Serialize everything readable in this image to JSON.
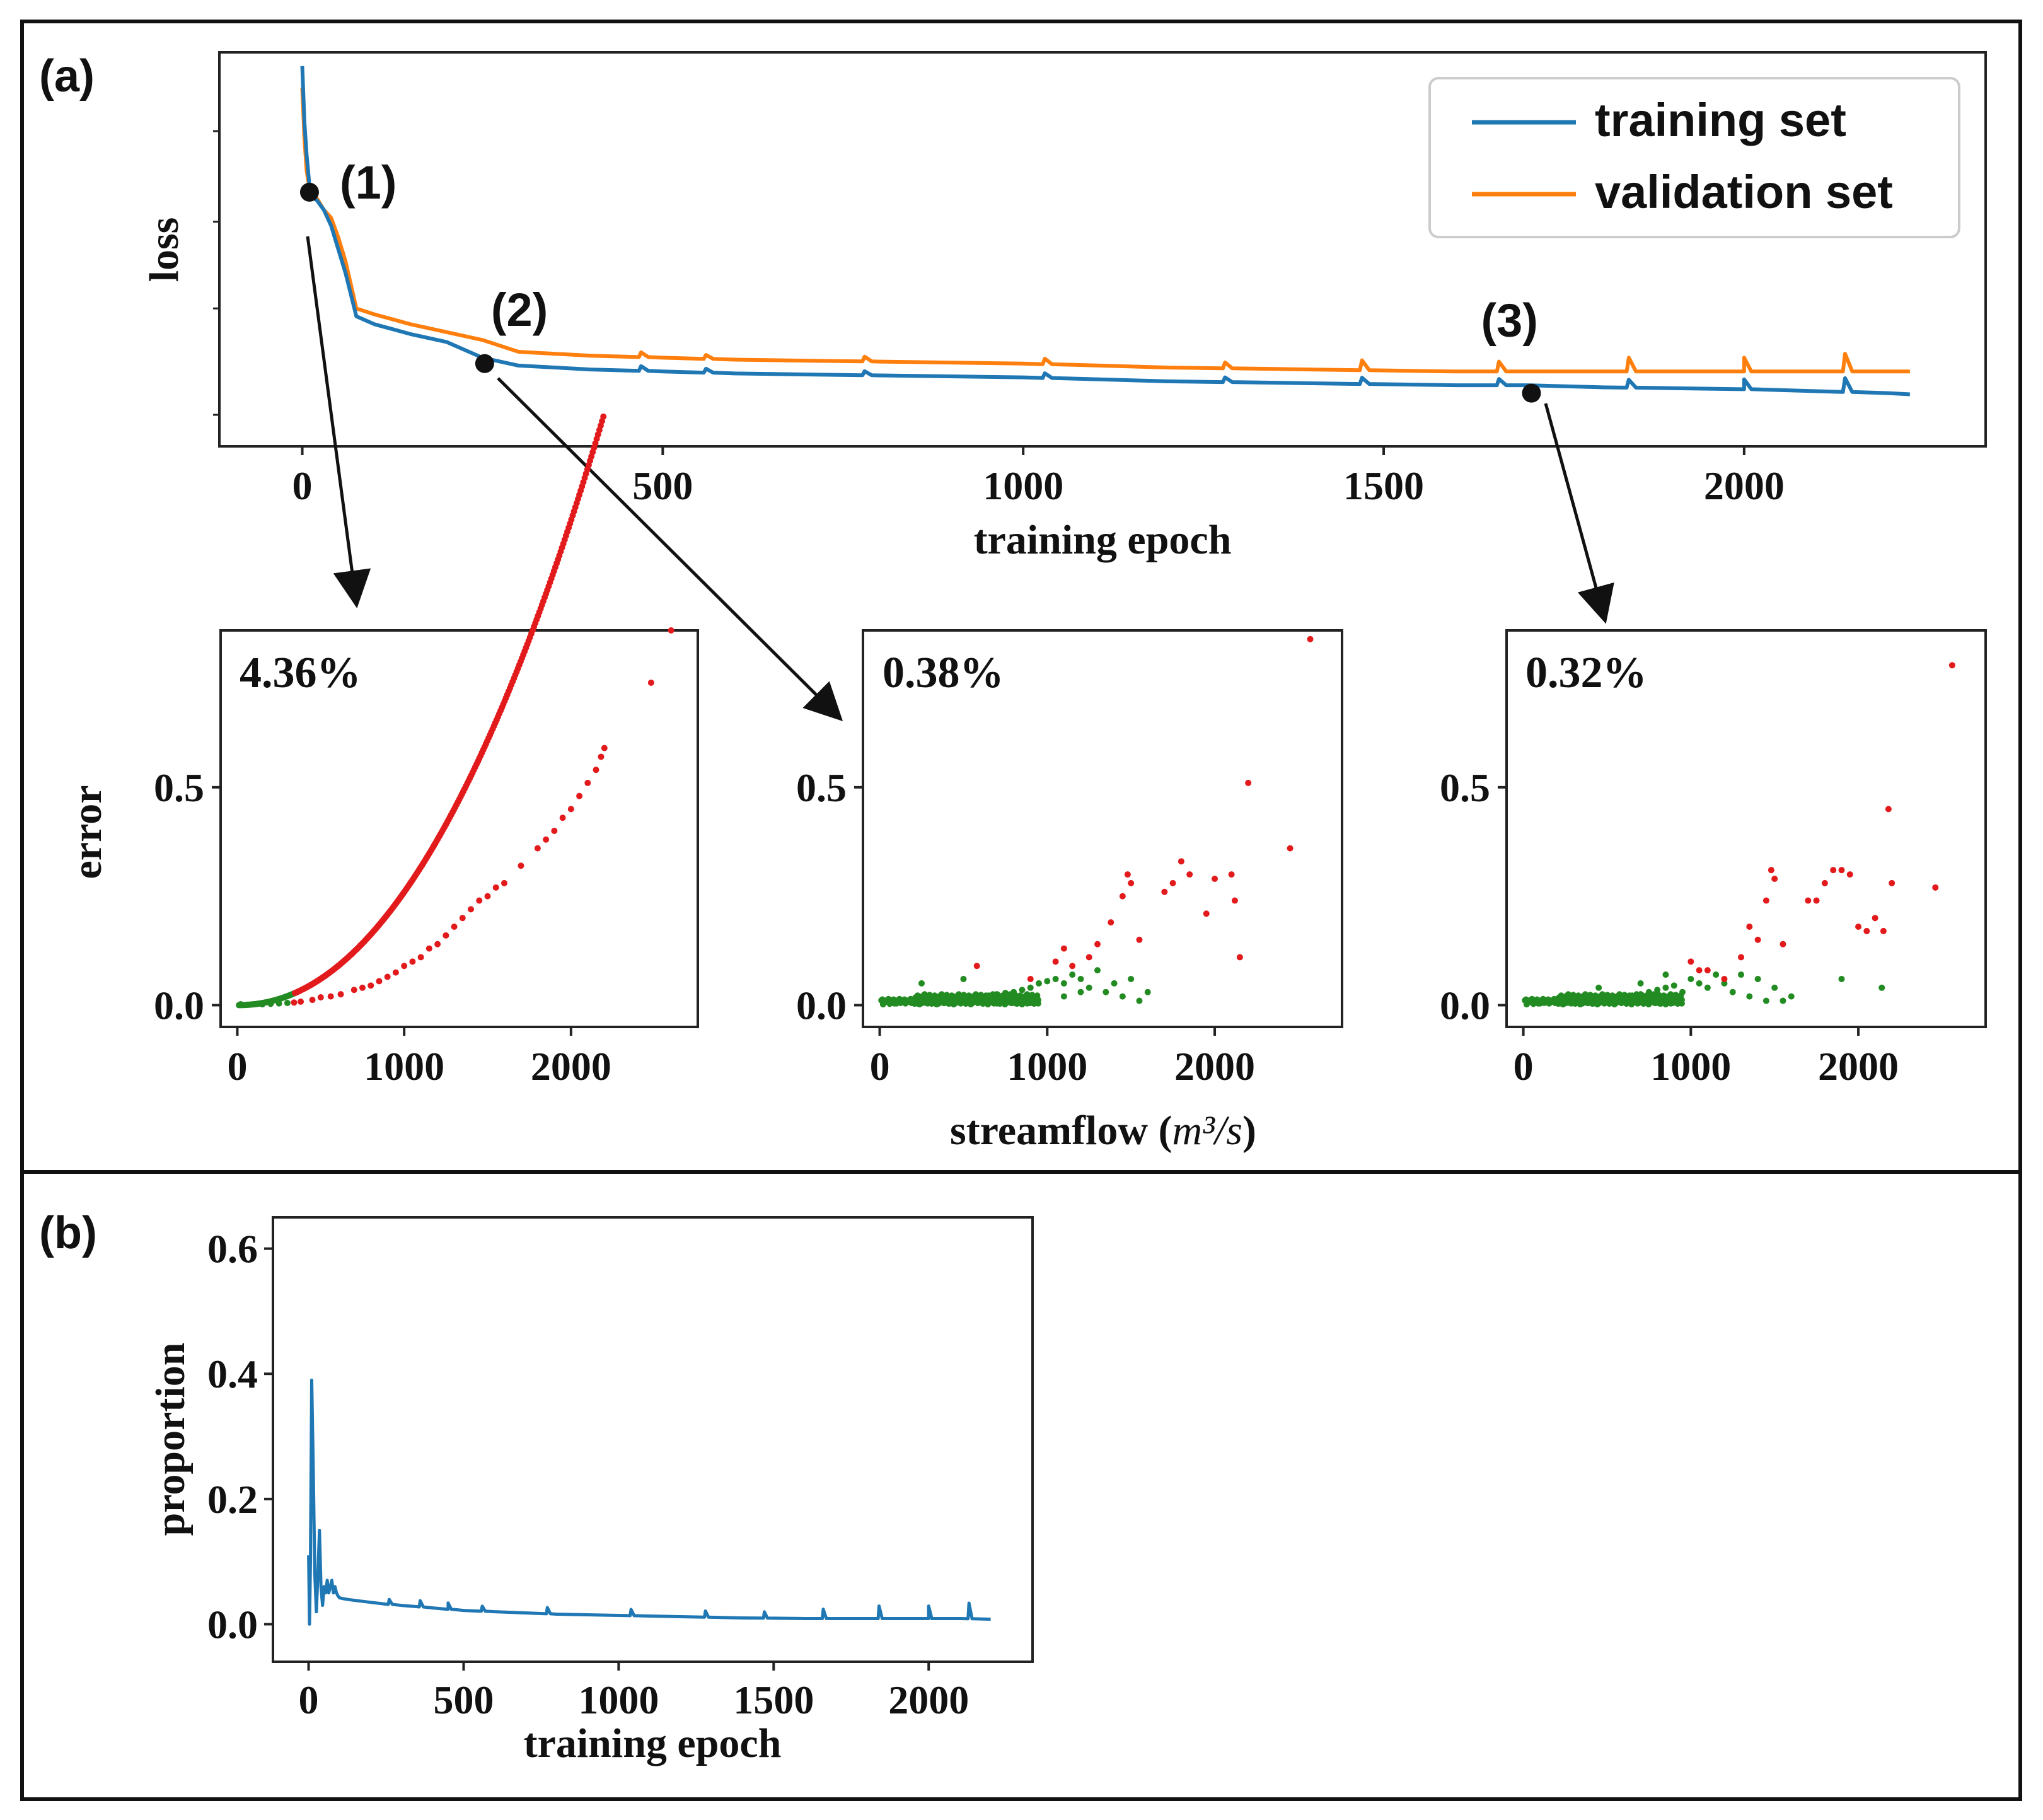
{
  "panel_a_label": "(a)",
  "panel_b_label": "(b)",
  "colors": {
    "training": "#1f77b4",
    "validation": "#ff7f0e",
    "over": "#e31a1c",
    "under": "#228b22",
    "ink": "#111111"
  },
  "chart_data": [
    {
      "id": "loss",
      "type": "line",
      "title": "",
      "xlabel": "training epoch",
      "ylabel": "loss",
      "xlim": [
        -115,
        2335
      ],
      "ylim": [
        0,
        1
      ],
      "yticks_labeled": false,
      "x_ticks": [
        0,
        500,
        1000,
        1500,
        2000
      ],
      "x_tick_labels": [
        "0",
        "500",
        "1000",
        "1500",
        "2000"
      ],
      "legend": [
        "training set",
        "validation set"
      ],
      "series": [
        {
          "name": "training set",
          "x": [
            0,
            3,
            6,
            10,
            15,
            20,
            30,
            40,
            50,
            60,
            75,
            100,
            150,
            200,
            250,
            300,
            400,
            500,
            600,
            800,
            1000,
            1200,
            1400,
            1600,
            1700,
            1800,
            2000,
            2100,
            2200,
            2230
          ],
          "y": [
            0.965,
            0.82,
            0.74,
            0.66,
            0.63,
            0.625,
            0.6,
            0.56,
            0.5,
            0.44,
            0.33,
            0.31,
            0.285,
            0.265,
            0.225,
            0.205,
            0.195,
            0.19,
            0.185,
            0.18,
            0.175,
            0.165,
            0.16,
            0.155,
            0.155,
            0.15,
            0.145,
            0.14,
            0.135,
            0.132
          ],
          "spikes_x": [
            470,
            560,
            780,
            1030,
            1280,
            1470,
            1660,
            1840,
            2000,
            2140
          ],
          "spikes_h": [
            0.012,
            0.01,
            0.01,
            0.012,
            0.012,
            0.016,
            0.016,
            0.02,
            0.025,
            0.035
          ]
        },
        {
          "name": "validation set",
          "x": [
            0,
            3,
            6,
            10,
            15,
            20,
            30,
            40,
            50,
            60,
            75,
            100,
            150,
            200,
            250,
            300,
            400,
            500,
            600,
            800,
            1000,
            1200,
            1400,
            1600,
            1700,
            1800,
            2000,
            2100,
            2200,
            2230
          ],
          "y": [
            0.91,
            0.78,
            0.7,
            0.655,
            0.64,
            0.63,
            0.6,
            0.58,
            0.53,
            0.47,
            0.35,
            0.335,
            0.31,
            0.29,
            0.27,
            0.24,
            0.23,
            0.225,
            0.22,
            0.215,
            0.21,
            0.2,
            0.195,
            0.19,
            0.19,
            0.19,
            0.19,
            0.19,
            0.19,
            0.19
          ],
          "spikes_x": [
            470,
            560,
            780,
            1030,
            1280,
            1470,
            1660,
            1840,
            2000,
            2140
          ],
          "spikes_h": [
            0.012,
            0.01,
            0.012,
            0.014,
            0.015,
            0.025,
            0.025,
            0.035,
            0.035,
            0.045
          ]
        }
      ],
      "annotations": [
        {
          "label": "(1)",
          "x": 10,
          "y": 0.645
        },
        {
          "label": "(2)",
          "x": 253,
          "y": 0.21
        },
        {
          "label": "(3)",
          "x": 1705,
          "y": 0.135
        }
      ]
    },
    {
      "id": "scatter-1",
      "type": "scatter",
      "annotation": "4.36%",
      "xlabel": "",
      "ylabel": "error",
      "xlim": [
        -100,
        2760
      ],
      "ylim": [
        -0.05,
        0.86
      ],
      "x_ticks": [
        0,
        1000,
        2000
      ],
      "x_tick_labels": [
        "0",
        "1000",
        "2000"
      ],
      "y_ticks": [
        0.0,
        0.5
      ],
      "y_tick_labels": [
        "0.0",
        "0.5"
      ],
      "model": {
        "kind": "curve",
        "coef": 1.3e-07,
        "power": 2.1,
        "split_x": 340
      },
      "points": [
        [
          20,
          0.002
        ],
        [
          60,
          0.001
        ],
        [
          100,
          0.002
        ],
        [
          150,
          0.002
        ],
        [
          200,
          0.003
        ],
        [
          250,
          0.004
        ],
        [
          300,
          0.005
        ],
        [
          340,
          0.006
        ],
        [
          380,
          0.008
        ],
        [
          450,
          0.012
        ],
        [
          500,
          0.018
        ],
        [
          560,
          0.02
        ],
        [
          620,
          0.025
        ],
        [
          700,
          0.035
        ],
        [
          750,
          0.04
        ],
        [
          800,
          0.045
        ],
        [
          850,
          0.055
        ],
        [
          900,
          0.065
        ],
        [
          950,
          0.075
        ],
        [
          1000,
          0.09
        ],
        [
          1050,
          0.1
        ],
        [
          1100,
          0.11
        ],
        [
          1150,
          0.13
        ],
        [
          1200,
          0.14
        ],
        [
          1250,
          0.16
        ],
        [
          1300,
          0.18
        ],
        [
          1350,
          0.2
        ],
        [
          1400,
          0.22
        ],
        [
          1450,
          0.24
        ],
        [
          1500,
          0.25
        ],
        [
          1550,
          0.27
        ],
        [
          1600,
          0.28
        ],
        [
          1700,
          0.32
        ],
        [
          1800,
          0.36
        ],
        [
          1850,
          0.38
        ],
        [
          1900,
          0.4
        ],
        [
          1950,
          0.43
        ],
        [
          2000,
          0.45
        ],
        [
          2050,
          0.48
        ],
        [
          2100,
          0.51
        ],
        [
          2150,
          0.54
        ],
        [
          2180,
          0.57
        ],
        [
          2200,
          0.59
        ],
        [
          2480,
          0.74
        ],
        [
          2600,
          0.86
        ]
      ]
    },
    {
      "id": "scatter-2",
      "type": "scatter",
      "annotation": "0.38%",
      "xlabel": "streamflow",
      "xlabel_unit": "m³/s",
      "ylabel": "",
      "xlim": [
        -100,
        2760
      ],
      "ylim": [
        -0.05,
        0.86
      ],
      "x_ticks": [
        0,
        1000,
        2000
      ],
      "x_tick_labels": [
        "0",
        "1000",
        "2000"
      ],
      "y_ticks": [
        0.0,
        0.5
      ],
      "y_tick_labels": [
        "0.0",
        "0.5"
      ],
      "points_green": [
        [
          20,
          0.002
        ],
        [
          60,
          0.003
        ],
        [
          100,
          0.004
        ],
        [
          150,
          0.005
        ],
        [
          200,
          0.006
        ],
        [
          250,
          0.008
        ],
        [
          300,
          0.009
        ],
        [
          350,
          0.01
        ],
        [
          400,
          0.012
        ],
        [
          450,
          0.013
        ],
        [
          500,
          0.015
        ],
        [
          550,
          0.016
        ],
        [
          600,
          0.02
        ],
        [
          650,
          0.022
        ],
        [
          700,
          0.025
        ],
        [
          750,
          0.028
        ],
        [
          800,
          0.03
        ],
        [
          850,
          0.035
        ],
        [
          900,
          0.04
        ],
        [
          950,
          0.05
        ],
        [
          1000,
          0.055
        ],
        [
          1050,
          0.06
        ],
        [
          1100,
          0.05
        ],
        [
          1150,
          0.07
        ],
        [
          1200,
          0.06
        ],
        [
          1250,
          0.04
        ],
        [
          1300,
          0.08
        ],
        [
          1350,
          0.03
        ],
        [
          1400,
          0.05
        ],
        [
          1450,
          0.02
        ],
        [
          1500,
          0.06
        ],
        [
          1550,
          0.01
        ],
        [
          1600,
          0.03
        ],
        [
          900,
          0.005
        ],
        [
          700,
          0.004
        ],
        [
          500,
          0.06
        ],
        [
          300,
          0.02
        ],
        [
          250,
          0.05
        ],
        [
          1100,
          0.02
        ],
        [
          1200,
          0.03
        ]
      ],
      "points_red": [
        [
          580,
          0.09
        ],
        [
          900,
          0.06
        ],
        [
          1050,
          0.1
        ],
        [
          1100,
          0.13
        ],
        [
          1150,
          0.09
        ],
        [
          1250,
          0.11
        ],
        [
          1300,
          0.14
        ],
        [
          1380,
          0.19
        ],
        [
          1450,
          0.25
        ],
        [
          1500,
          0.28
        ],
        [
          1480,
          0.3
        ],
        [
          1550,
          0.15
        ],
        [
          1700,
          0.26
        ],
        [
          1750,
          0.28
        ],
        [
          1800,
          0.33
        ],
        [
          1850,
          0.3
        ],
        [
          1950,
          0.21
        ],
        [
          2000,
          0.29
        ],
        [
          2100,
          0.3
        ],
        [
          2120,
          0.24
        ],
        [
          2200,
          0.51
        ],
        [
          2150,
          0.11
        ],
        [
          2450,
          0.36
        ],
        [
          2570,
          0.84
        ]
      ]
    },
    {
      "id": "scatter-3",
      "type": "scatter",
      "annotation": "0.32%",
      "xlabel": "",
      "ylabel": "",
      "xlim": [
        -100,
        2760
      ],
      "ylim": [
        -0.05,
        0.86
      ],
      "x_ticks": [
        0,
        1000,
        2000
      ],
      "x_tick_labels": [
        "0",
        "1000",
        "2000"
      ],
      "y_ticks": [
        0.0,
        0.5
      ],
      "y_tick_labels": [
        "0.0",
        "0.5"
      ],
      "points_green": [
        [
          20,
          0.002
        ],
        [
          60,
          0.003
        ],
        [
          100,
          0.004
        ],
        [
          150,
          0.005
        ],
        [
          200,
          0.006
        ],
        [
          250,
          0.008
        ],
        [
          300,
          0.009
        ],
        [
          350,
          0.01
        ],
        [
          400,
          0.012
        ],
        [
          450,
          0.013
        ],
        [
          500,
          0.015
        ],
        [
          550,
          0.017
        ],
        [
          600,
          0.02
        ],
        [
          650,
          0.022
        ],
        [
          700,
          0.025
        ],
        [
          750,
          0.03
        ],
        [
          800,
          0.035
        ],
        [
          850,
          0.04
        ],
        [
          900,
          0.045
        ],
        [
          950,
          0.03
        ],
        [
          1000,
          0.06
        ],
        [
          1050,
          0.05
        ],
        [
          1100,
          0.04
        ],
        [
          1150,
          0.07
        ],
        [
          1200,
          0.05
        ],
        [
          1250,
          0.03
        ],
        [
          1300,
          0.07
        ],
        [
          1350,
          0.02
        ],
        [
          1400,
          0.06
        ],
        [
          1450,
          0.01
        ],
        [
          1500,
          0.04
        ],
        [
          1550,
          0.01
        ],
        [
          1600,
          0.02
        ],
        [
          1900,
          0.06
        ],
        [
          2140,
          0.04
        ],
        [
          300,
          0.02
        ],
        [
          450,
          0.04
        ],
        [
          700,
          0.05
        ],
        [
          850,
          0.07
        ]
      ],
      "points_red": [
        [
          1000,
          0.1
        ],
        [
          1050,
          0.08
        ],
        [
          1100,
          0.08
        ],
        [
          1200,
          0.06
        ],
        [
          1300,
          0.11
        ],
        [
          1350,
          0.18
        ],
        [
          1400,
          0.15
        ],
        [
          1450,
          0.24
        ],
        [
          1480,
          0.31
        ],
        [
          1500,
          0.29
        ],
        [
          1550,
          0.14
        ],
        [
          1700,
          0.24
        ],
        [
          1750,
          0.24
        ],
        [
          1800,
          0.28
        ],
        [
          1850,
          0.31
        ],
        [
          1900,
          0.31
        ],
        [
          1950,
          0.3
        ],
        [
          2000,
          0.18
        ],
        [
          2050,
          0.17
        ],
        [
          2100,
          0.2
        ],
        [
          2150,
          0.17
        ],
        [
          2180,
          0.45
        ],
        [
          2200,
          0.28
        ],
        [
          2460,
          0.27
        ],
        [
          2560,
          0.78
        ]
      ]
    },
    {
      "id": "proportion",
      "type": "line",
      "xlabel": "training epoch",
      "ylabel": "proportion",
      "xlim": [
        -115,
        2335
      ],
      "ylim": [
        -0.06,
        0.65
      ],
      "x_ticks": [
        0,
        500,
        1000,
        1500,
        2000
      ],
      "x_tick_labels": [
        "0",
        "500",
        "1000",
        "1500",
        "2000"
      ],
      "y_ticks": [
        0.0,
        0.2,
        0.4,
        0.6
      ],
      "y_tick_labels": [
        "0.0",
        "0.2",
        "0.4",
        "0.6"
      ],
      "series": [
        {
          "name": "proportion",
          "x": [
            0,
            3,
            6,
            10,
            15,
            20,
            25,
            30,
            35,
            40,
            45,
            50,
            55,
            60,
            65,
            70,
            75,
            80,
            85,
            90,
            95,
            100,
            120,
            150,
            200,
            250,
            300,
            350,
            400,
            450,
            500,
            600,
            700,
            800,
            1000,
            1200,
            1400,
            1600,
            1800,
            2000,
            2100,
            2200
          ],
          "y": [
            0.11,
            0.0,
            0.1,
            0.39,
            0.25,
            0.08,
            0.02,
            0.08,
            0.15,
            0.06,
            0.03,
            0.06,
            0.05,
            0.07,
            0.05,
            0.06,
            0.07,
            0.05,
            0.06,
            0.05,
            0.045,
            0.042,
            0.04,
            0.038,
            0.035,
            0.032,
            0.03,
            0.028,
            0.026,
            0.024,
            0.022,
            0.02,
            0.018,
            0.016,
            0.014,
            0.012,
            0.01,
            0.009,
            0.009,
            0.009,
            0.009,
            0.008
          ],
          "spikes_x": [
            260,
            360,
            450,
            560,
            770,
            1040,
            1280,
            1470,
            1660,
            1840,
            2000,
            2130
          ],
          "spikes_h": [
            0.008,
            0.01,
            0.01,
            0.008,
            0.01,
            0.01,
            0.01,
            0.01,
            0.015,
            0.02,
            0.02,
            0.025
          ]
        }
      ]
    }
  ]
}
